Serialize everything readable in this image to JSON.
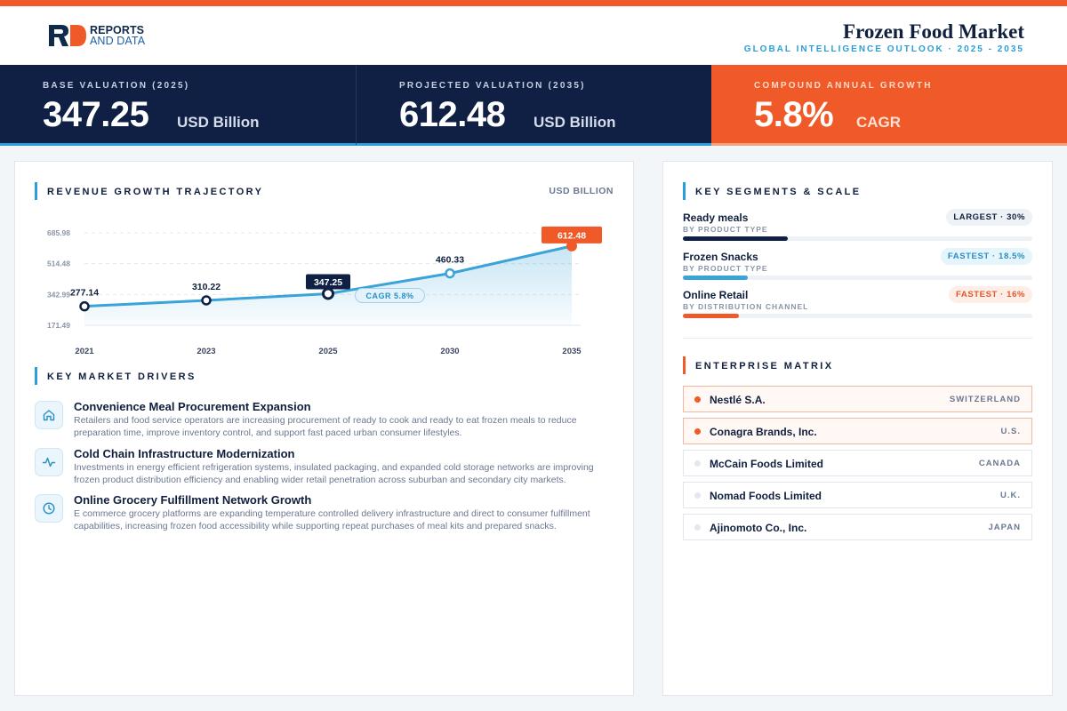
{
  "header": {
    "logo_line1": "REPORTS",
    "logo_line2": "AND DATA",
    "title": "Frozen Food Market",
    "subtitle": "GLOBAL INTELLIGENCE OUTLOOK  ·  2025 - 2035"
  },
  "kpis": [
    {
      "label": "BASE VALUATION (2025)",
      "value": "347.25",
      "unit": "USD Billion"
    },
    {
      "label": "PROJECTED VALUATION (2035)",
      "value": "612.48",
      "unit": "USD Billion"
    },
    {
      "label": "COMPOUND ANNUAL GROWTH",
      "value": "5.8%",
      "unit": "CAGR"
    }
  ],
  "revenue_section": {
    "title": "REVENUE GROWTH TRAJECTORY",
    "unit": "USD BILLION",
    "cagr_label": "CAGR 5.8%"
  },
  "chart_data": {
    "type": "area",
    "title": "REVENUE GROWTH TRAJECTORY",
    "ylabel": "USD BILLION",
    "categories": [
      "2021",
      "2023",
      "2025",
      "2030",
      "2035"
    ],
    "values": [
      277.14,
      310.22,
      347.25,
      460.33,
      612.48
    ],
    "value_labels": [
      "277.14",
      "310.22",
      "347.25",
      "460.33",
      "612.48"
    ],
    "yticks": [
      "685.98",
      "514.48",
      "342.99",
      "171.49"
    ],
    "ytick_values": [
      685.98,
      514.48,
      342.99,
      171.49
    ],
    "ylim": [
      171.49,
      685.98
    ],
    "grid": true,
    "colors": {
      "line": "#3aa3d8",
      "highlight": "#0f2044",
      "accent": "#f05a28"
    }
  },
  "drivers_section": {
    "title": "KEY MARKET DRIVERS",
    "items": [
      {
        "icon": "home-icon",
        "title": "Convenience Meal Procurement Expansion",
        "desc": "Retailers and food service operators are increasing procurement of ready to cook and ready to eat frozen meals to reduce preparation time, improve inventory control, and support fast paced urban consumer lifestyles."
      },
      {
        "icon": "pulse-icon",
        "title": "Cold Chain Infrastructure Modernization",
        "desc": "Investments in energy efficient refrigeration systems, insulated packaging, and expanded cold storage networks are improving frozen product distribution efficiency and enabling wider retail penetration across suburban and secondary city markets."
      },
      {
        "icon": "clock-icon",
        "title": "Online Grocery Fulfillment Network Growth",
        "desc": "E commerce grocery platforms are expanding temperature controlled delivery infrastructure and direct to consumer fulfillment capabilities, increasing frozen food accessibility while supporting repeat purchases of meal kits and prepared snacks."
      }
    ]
  },
  "segments_section": {
    "title": "KEY SEGMENTS & SCALE",
    "items": [
      {
        "name": "Ready meals",
        "sub": "BY PRODUCT TYPE",
        "badge": "LARGEST · 30%",
        "share": 0.3,
        "color": "#0f2044",
        "badge_bg": "#eef1f5",
        "badge_fg": "#0f1f3d"
      },
      {
        "name": "Frozen Snacks",
        "sub": "BY PRODUCT TYPE",
        "badge": "FASTEST · 18.5%",
        "share": 0.185,
        "color": "#3aa3d8",
        "badge_bg": "#e6f4fb",
        "badge_fg": "#2a8fc4"
      },
      {
        "name": "Online Retail",
        "sub": "BY DISTRIBUTION CHANNEL",
        "badge": "FASTEST · 16%",
        "share": 0.16,
        "color": "#f05a28",
        "badge_bg": "#fdeee7",
        "badge_fg": "#e4572a"
      }
    ]
  },
  "enterprise_section": {
    "title": "ENTERPRISE MATRIX",
    "items": [
      {
        "name": "Nestlé S.A.",
        "country": "SWITZERLAND",
        "highlight": true
      },
      {
        "name": "Conagra Brands, Inc.",
        "country": "U.S.",
        "highlight": true
      },
      {
        "name": "McCain Foods Limited",
        "country": "CANADA",
        "highlight": false
      },
      {
        "name": "Nomad Foods Limited",
        "country": "U.K.",
        "highlight": false
      },
      {
        "name": "Ajinomoto Co., Inc.",
        "country": "JAPAN",
        "highlight": false
      }
    ]
  }
}
